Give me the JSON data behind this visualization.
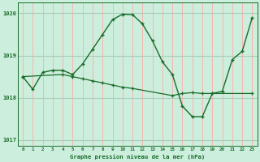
{
  "title": "Graphe pression niveau de la mer (hPa)",
  "bg_color": "#cceedd",
  "line_color": "#1a6b2a",
  "grid_color_h": "#aaccbb",
  "grid_color_v": "#ffaaaa",
  "xlim": [
    -0.5,
    23.5
  ],
  "ylim": [
    1016.85,
    1020.25
  ],
  "yticks": [
    1017,
    1018,
    1019,
    1020
  ],
  "xticks": [
    0,
    1,
    2,
    3,
    4,
    5,
    6,
    7,
    8,
    9,
    10,
    11,
    12,
    13,
    14,
    15,
    16,
    17,
    18,
    19,
    20,
    21,
    22,
    23
  ],
  "series1_x": [
    0,
    1,
    2,
    3,
    4,
    5,
    6,
    7,
    8,
    9,
    10,
    11,
    12,
    13,
    14,
    15,
    16,
    17,
    18,
    19,
    20,
    21,
    22,
    23
  ],
  "series1_y": [
    1018.5,
    1018.2,
    1018.6,
    1018.65,
    1018.65,
    1018.55,
    1018.8,
    1019.15,
    1019.5,
    1019.85,
    1019.98,
    1019.97,
    1019.75,
    1019.35,
    1018.85,
    1018.55,
    1017.8,
    1017.55,
    1017.55,
    1018.1,
    1018.15,
    1018.9,
    1019.1,
    1019.9
  ],
  "series2_x": [
    0,
    4,
    5,
    6,
    7,
    8,
    9,
    10,
    11,
    15,
    16,
    17,
    18,
    19,
    23
  ],
  "series2_y": [
    1018.5,
    1018.55,
    1018.5,
    1018.45,
    1018.4,
    1018.35,
    1018.3,
    1018.25,
    1018.22,
    1018.05,
    1018.1,
    1018.12,
    1018.1,
    1018.1,
    1018.1
  ]
}
